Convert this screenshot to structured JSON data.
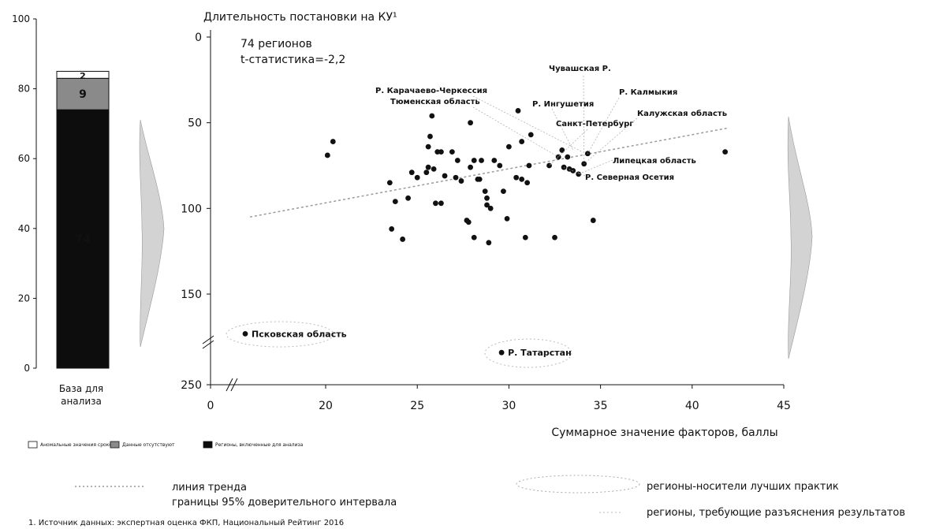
{
  "chart_data": [
    {
      "type": "bar",
      "name": "stacked-bar",
      "categories": [
        "База для анализа"
      ],
      "xlabel_lines": [
        "База для",
        "анализа"
      ],
      "ylim": [
        0,
        100
      ],
      "yticks": [
        0,
        20,
        40,
        60,
        80,
        100
      ],
      "series": [
        {
          "key": "included",
          "label": "Регионы, включенные для анализа",
          "values": [
            74
          ],
          "color": "#0d0d0d"
        },
        {
          "key": "nodata",
          "label": "Данные отсутствуют",
          "values": [
            9
          ],
          "color": "#8a8a8a"
        },
        {
          "key": "anomalous",
          "label": "Аномальные значения сроков",
          "values": [
            2
          ],
          "color": "#ffffff"
        }
      ],
      "legend": {
        "items": [
          {
            "key": "anomalous",
            "text": "Аномальные значения сроков"
          },
          {
            "key": "nodata",
            "text": "Данные отсутствуют"
          },
          {
            "key": "included",
            "text": "Регионы, включенные для анализа"
          }
        ]
      }
    },
    {
      "type": "scatter",
      "name": "regions-scatter",
      "title": "Длительность постановки на КУ¹",
      "xlabel": "Суммарное значение факторов, баллы",
      "xlim": [
        0,
        45
      ],
      "xticks": [
        0,
        20,
        25,
        30,
        35,
        40,
        45
      ],
      "ylim": [
        0,
        250
      ],
      "y_inverted": true,
      "y_axis_break": [
        160,
        230
      ],
      "yticks": [
        0,
        50,
        100,
        150,
        250
      ],
      "annotation": {
        "line1": "74 регионов",
        "line2": "t-статистика=-2,2"
      },
      "trend": {
        "x": [
          0,
          42
        ],
        "y": [
          107,
          53
        ]
      },
      "points": [
        {
          "x": 20.1,
          "y": 69
        },
        {
          "x": 20.4,
          "y": 61
        },
        {
          "x": 23.5,
          "y": 85
        },
        {
          "x": 23.8,
          "y": 96
        },
        {
          "x": 23.6,
          "y": 112
        },
        {
          "x": 24.2,
          "y": 118
        },
        {
          "x": 24.5,
          "y": 94
        },
        {
          "x": 24.7,
          "y": 79
        },
        {
          "x": 25.0,
          "y": 82
        },
        {
          "x": 25.5,
          "y": 79
        },
        {
          "x": 25.6,
          "y": 76
        },
        {
          "x": 25.6,
          "y": 64
        },
        {
          "x": 25.7,
          "y": 58
        },
        {
          "x": 25.8,
          "y": 46
        },
        {
          "x": 25.9,
          "y": 77
        },
        {
          "x": 26.0,
          "y": 97
        },
        {
          "x": 26.1,
          "y": 67
        },
        {
          "x": 26.3,
          "y": 67
        },
        {
          "x": 26.3,
          "y": 97
        },
        {
          "x": 26.5,
          "y": 81
        },
        {
          "x": 26.9,
          "y": 67
        },
        {
          "x": 27.1,
          "y": 82
        },
        {
          "x": 27.2,
          "y": 72
        },
        {
          "x": 27.4,
          "y": 84
        },
        {
          "x": 27.7,
          "y": 107
        },
        {
          "x": 27.8,
          "y": 108
        },
        {
          "x": 27.9,
          "y": 76
        },
        {
          "x": 27.9,
          "y": 50
        },
        {
          "x": 28.1,
          "y": 72
        },
        {
          "x": 28.1,
          "y": 117
        },
        {
          "x": 28.3,
          "y": 83
        },
        {
          "x": 28.4,
          "y": 83
        },
        {
          "x": 28.5,
          "y": 72
        },
        {
          "x": 28.7,
          "y": 90
        },
        {
          "x": 28.8,
          "y": 94
        },
        {
          "x": 28.8,
          "y": 98
        },
        {
          "x": 28.9,
          "y": 120
        },
        {
          "x": 29.0,
          "y": 100
        },
        {
          "x": 29.2,
          "y": 72
        },
        {
          "x": 29.5,
          "y": 75
        },
        {
          "x": 29.7,
          "y": 90
        },
        {
          "x": 29.9,
          "y": 106
        },
        {
          "x": 30.0,
          "y": 64
        },
        {
          "x": 30.4,
          "y": 82
        },
        {
          "x": 30.5,
          "y": 43
        },
        {
          "x": 30.7,
          "y": 61
        },
        {
          "x": 30.7,
          "y": 83
        },
        {
          "x": 30.9,
          "y": 117
        },
        {
          "x": 31.0,
          "y": 85
        },
        {
          "x": 31.1,
          "y": 75
        },
        {
          "x": 31.2,
          "y": 57
        },
        {
          "x": 32.2,
          "y": 75
        },
        {
          "x": 32.5,
          "y": 117
        },
        {
          "x": 32.7,
          "y": 70
        },
        {
          "x": 32.9,
          "y": 66
        },
        {
          "x": 33.0,
          "y": 76
        },
        {
          "x": 33.2,
          "y": 70
        },
        {
          "x": 33.3,
          "y": 77
        },
        {
          "x": 33.5,
          "y": 78
        },
        {
          "x": 33.8,
          "y": 80
        },
        {
          "x": 34.1,
          "y": 74
        },
        {
          "x": 34.3,
          "y": 68
        },
        {
          "x": 34.6,
          "y": 107
        },
        {
          "x": 41.8,
          "y": 67
        }
      ],
      "labeled_points": [
        {
          "text": "Псковская область",
          "x": 2.2,
          "y": 231
        },
        {
          "text": "Р. Татарстан",
          "x": 29.6,
          "y": 238
        }
      ],
      "callouts": [
        {
          "text": "Чувашская Р.",
          "x": 34.1,
          "y": 72
        },
        {
          "text": "Р. Калмыкия",
          "x": 34.3,
          "y": 68
        },
        {
          "text": "Р. Карачаево-Черкессия",
          "x": 34.0,
          "y": 67
        },
        {
          "text": "Р. Ингушетия",
          "x": 33.5,
          "y": 66
        },
        {
          "text": "Тюменская область",
          "x": 32.7,
          "y": 70
        },
        {
          "text": "Санкт-Петербург",
          "x": 32.2,
          "y": 75
        },
        {
          "text": "Калужская область",
          "x": 34.1,
          "y": 74
        },
        {
          "text": "Липецкая область",
          "x": 33.8,
          "y": 80
        },
        {
          "text": "Р. Северная Осетия",
          "x": 33.0,
          "y": 76
        }
      ]
    }
  ],
  "legend_bottom": {
    "trend": "линия тренда",
    "ci": "границы  95% доверительного интервала",
    "best": "регионы-носители лучших практик",
    "explain": "регионы, требующие разъяснения результатов"
  },
  "footnote": "1. Источник данных: экспертная оценка ФКП, Национальный Рейтинг 2016"
}
